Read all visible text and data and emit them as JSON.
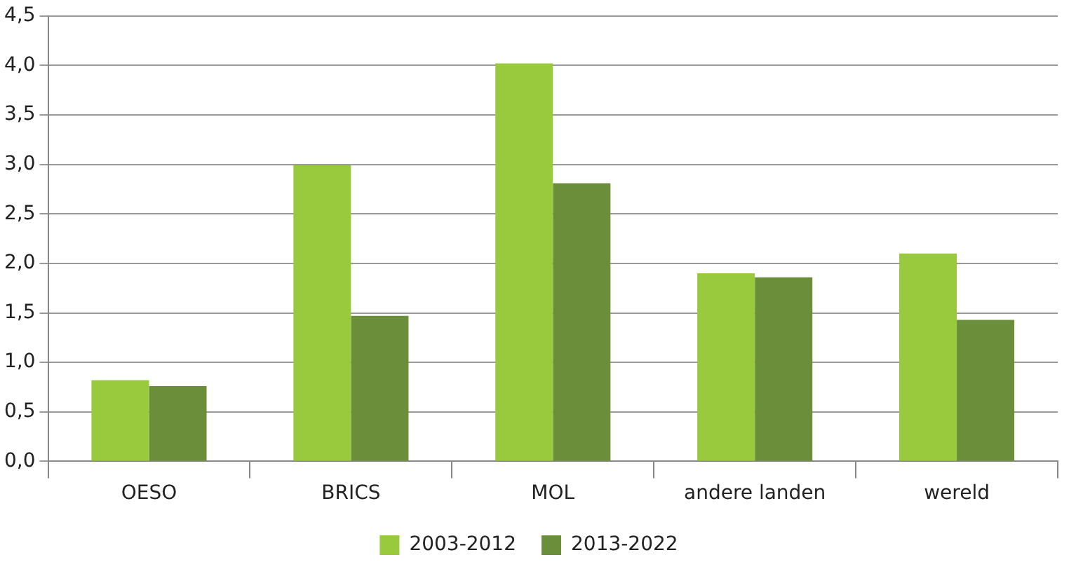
{
  "chart_data": {
    "type": "bar",
    "categories": [
      "OESO",
      "BRICS",
      "MOL",
      "andere landen",
      "wereld"
    ],
    "series": [
      {
        "name": "2003-2012",
        "color": "#99c93c",
        "values": [
          0.82,
          2.99,
          4.02,
          1.9,
          2.1
        ]
      },
      {
        "name": "2013-2022",
        "color": "#6b8e3b",
        "values": [
          0.76,
          1.47,
          2.81,
          1.86,
          1.43
        ]
      }
    ],
    "ylim": [
      0,
      4.5
    ],
    "yticks": [
      {
        "value": 0,
        "label": "0,0"
      },
      {
        "value": 0.5,
        "label": "0,5"
      },
      {
        "value": 1,
        "label": "1,0"
      },
      {
        "value": 1.5,
        "label": "1,5"
      },
      {
        "value": 2,
        "label": "2,0"
      },
      {
        "value": 2.5,
        "label": "2,5"
      },
      {
        "value": 3,
        "label": "3,0"
      },
      {
        "value": 3.5,
        "label": "3,5"
      },
      {
        "value": 4,
        "label": "4,0"
      },
      {
        "value": 4.5,
        "label": "4,5"
      }
    ],
    "grid": "y",
    "legend": "bottom"
  }
}
